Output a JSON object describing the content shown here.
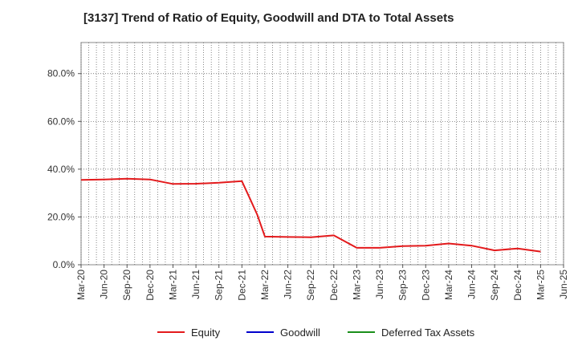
{
  "chart_data": {
    "type": "line",
    "title": "[3137]  Trend of Ratio of Equity, Goodwill and DTA to Total Assets",
    "xlabel": "",
    "ylabel": "",
    "ylim": [
      0,
      93
    ],
    "y_ticks": [
      0,
      20,
      40,
      60,
      80
    ],
    "y_tick_labels": [
      "0.0%",
      "20.0%",
      "40.0%",
      "60.0%",
      "80.0%"
    ],
    "x_tick_labels": [
      "Mar-20",
      "Jun-20",
      "Sep-20",
      "Dec-20",
      "Mar-21",
      "Jun-21",
      "Sep-21",
      "Dec-21",
      "Mar-22",
      "Jun-22",
      "Sep-22",
      "Dec-22",
      "Mar-23",
      "Jun-23",
      "Sep-23",
      "Dec-23",
      "Mar-24",
      "Jun-24",
      "Sep-24",
      "Dec-24",
      "Mar-25",
      "Jun-25"
    ],
    "grid": true,
    "legend_position": "bottom",
    "series": [
      {
        "name": "Equity",
        "color": "#e31a1c",
        "x": [
          "Mar-20",
          "Jun-20",
          "Sep-20",
          "Dec-20",
          "Mar-21",
          "Jun-21",
          "Sep-21",
          "Dec-21",
          "Jan-22",
          "Feb-22",
          "Mar-22",
          "Jun-22",
          "Sep-22",
          "Dec-22",
          "Mar-23",
          "Jun-23",
          "Sep-23",
          "Dec-23",
          "Mar-24",
          "Jun-24",
          "Sep-24",
          "Dec-24",
          "Mar-25"
        ],
        "values": [
          35.5,
          35.7,
          36.0,
          35.7,
          33.8,
          33.9,
          34.3,
          35.0,
          28.0,
          21.0,
          11.8,
          11.6,
          11.5,
          12.3,
          7.1,
          7.1,
          7.8,
          8.0,
          8.9,
          8.0,
          6.0,
          6.8,
          5.5
        ]
      },
      {
        "name": "Goodwill",
        "color": "#0000cc",
        "x": [],
        "values": []
      },
      {
        "name": "Deferred Tax Assets",
        "color": "#1a8f1a",
        "x": [],
        "values": []
      }
    ]
  }
}
